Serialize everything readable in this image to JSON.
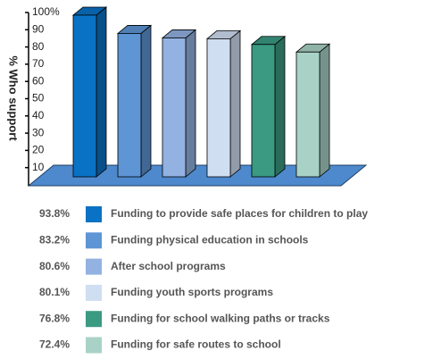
{
  "chart_data": {
    "type": "bar3d",
    "y_label": "% Who support",
    "categories": [
      "Funding to provide safe places for children to play",
      "Funding physical education in schools",
      "After school programs",
      "Funding youth sports programs",
      "Funding for school walking paths or tracks",
      "Funding for safe routes to school"
    ],
    "values": [
      93.8,
      83.2,
      80.6,
      80.1,
      76.8,
      72.4
    ],
    "value_labels": [
      "93.8%",
      "83.2%",
      "80.6%",
      "80.1%",
      "76.8%",
      "72.4%"
    ],
    "colors": [
      "#0a72c4",
      "#5d95d5",
      "#93b2e2",
      "#d0def2",
      "#3b9a82",
      "#a9d2c6"
    ],
    "ylim": [
      0,
      100
    ],
    "yticks": [
      10,
      20,
      30,
      40,
      50,
      60,
      70,
      80,
      90,
      {
        "value": 100,
        "label": "100%"
      }
    ]
  }
}
